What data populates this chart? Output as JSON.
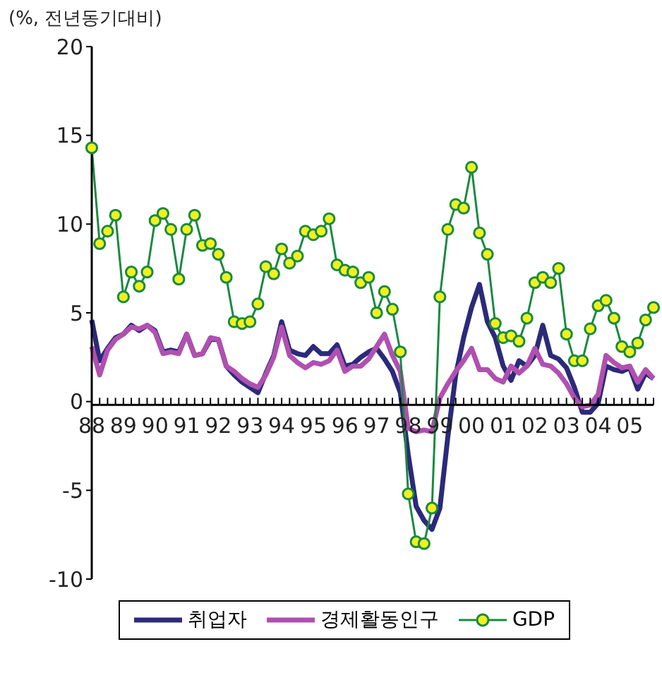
{
  "chart_data": {
    "type": "line",
    "ylabel": "(%, 전년동기대비)",
    "categories": [
      "88",
      null,
      null,
      null,
      "89",
      null,
      null,
      null,
      "90",
      null,
      null,
      null,
      "91",
      null,
      null,
      null,
      "92",
      null,
      null,
      null,
      "93",
      null,
      null,
      null,
      "94",
      null,
      null,
      null,
      "95",
      null,
      null,
      null,
      "96",
      null,
      null,
      null,
      "97",
      null,
      null,
      null,
      "98",
      null,
      null,
      null,
      "99",
      null,
      null,
      null,
      "00",
      null,
      null,
      null,
      "01",
      null,
      null,
      null,
      "02",
      null,
      null,
      null,
      "03",
      null,
      null,
      null,
      "04",
      null,
      null,
      null,
      "05",
      null,
      null,
      null
    ],
    "series": [
      {
        "name": "취업자",
        "color": "#2b2a7a",
        "marker": "none",
        "values": [
          4.6,
          2.3,
          3.0,
          3.6,
          3.8,
          4.3,
          4.0,
          4.3,
          4.0,
          2.8,
          2.9,
          2.8,
          3.8,
          2.6,
          2.7,
          3.5,
          3.5,
          2.0,
          1.5,
          1.1,
          0.8,
          0.5,
          1.6,
          2.6,
          4.5,
          2.9,
          2.7,
          2.6,
          3.1,
          2.7,
          2.7,
          3.2,
          2.0,
          2.1,
          2.5,
          2.8,
          3.0,
          2.4,
          1.7,
          0.5,
          -3.0,
          -5.9,
          -6.7,
          -7.2,
          -6.0,
          -2.0,
          1.5,
          3.6,
          5.3,
          6.6,
          4.5,
          3.6,
          2.0,
          1.2,
          2.3,
          2.0,
          2.6,
          4.3,
          2.6,
          2.4,
          1.9,
          0.8,
          -0.6,
          -0.6,
          -0.1,
          2.0,
          1.8,
          1.7,
          1.9,
          0.7,
          1.6,
          1.3
        ]
      },
      {
        "name": "경제활동인구",
        "color": "#b050b0",
        "marker": "none",
        "values": [
          3.1,
          1.5,
          2.9,
          3.5,
          3.8,
          4.2,
          4.1,
          4.3,
          3.9,
          2.7,
          2.8,
          2.7,
          3.8,
          2.6,
          2.7,
          3.6,
          3.5,
          2.0,
          1.7,
          1.3,
          1.0,
          0.8,
          1.5,
          2.5,
          4.2,
          2.6,
          2.2,
          1.9,
          2.2,
          2.1,
          2.3,
          2.9,
          1.7,
          2.0,
          2.0,
          2.4,
          3.1,
          3.8,
          2.6,
          1.7,
          -1.5,
          -1.7,
          -1.6,
          -1.7,
          0.2,
          1.0,
          1.7,
          2.3,
          3.0,
          1.8,
          1.8,
          1.3,
          1.1,
          2.0,
          1.6,
          2.0,
          3.0,
          2.1,
          2.0,
          1.6,
          1.0,
          0.2,
          -0.3,
          -0.2,
          0.4,
          2.6,
          2.2,
          1.9,
          2.0,
          1.1,
          1.8,
          1.3
        ]
      },
      {
        "name": "GDP",
        "color": "#1a8a40",
        "marker": "circle",
        "values": [
          14.3,
          8.9,
          9.6,
          10.5,
          5.9,
          7.3,
          6.5,
          7.3,
          10.2,
          10.6,
          9.7,
          6.9,
          9.7,
          10.5,
          8.8,
          8.9,
          8.3,
          7.0,
          4.5,
          4.4,
          4.5,
          5.5,
          7.6,
          7.2,
          8.6,
          7.8,
          8.2,
          9.6,
          9.4,
          9.6,
          10.3,
          7.7,
          7.4,
          7.3,
          6.7,
          7.0,
          5.0,
          6.2,
          5.2,
          2.8,
          -5.2,
          -7.9,
          -8.0,
          -6.0,
          5.9,
          9.7,
          11.1,
          10.9,
          13.2,
          9.5,
          8.3,
          4.4,
          3.6,
          3.7,
          3.4,
          4.7,
          6.7,
          7.0,
          6.7,
          7.5,
          3.8,
          2.3,
          2.3,
          4.1,
          5.4,
          5.7,
          4.7,
          3.1,
          2.8,
          3.3,
          4.6,
          5.3
        ]
      }
    ],
    "ylim": [
      -10,
      20
    ],
    "yticks": [
      -10,
      -5,
      0,
      5,
      10,
      15,
      20
    ],
    "legend": "bottom"
  }
}
